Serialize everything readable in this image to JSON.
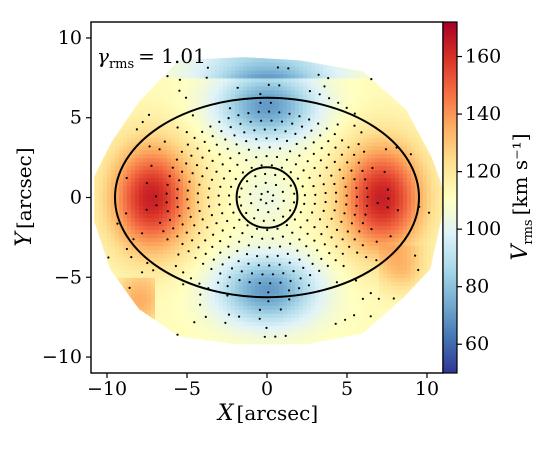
{
  "chart_data": {
    "type": "heatmap",
    "annotation": {
      "symbol": "γ",
      "subscript": "rms",
      "equals_value": "= 1.01"
    },
    "xlabel": {
      "symbol": "X",
      "unit": "[arcsec]"
    },
    "ylabel": {
      "symbol": "Y",
      "unit": "[arcsec]"
    },
    "xlim": [
      -11,
      11
    ],
    "ylim": [
      -11,
      11
    ],
    "xticks": [
      -10,
      -5,
      0,
      5,
      10
    ],
    "yticks": [
      -10,
      -5,
      0,
      5,
      10
    ],
    "colorbar": {
      "label": {
        "symbol": "V",
        "subscript": "rms",
        "unit": "[km s⁻¹]"
      },
      "range": [
        50,
        172
      ],
      "ticks": [
        60,
        80,
        100,
        120,
        140,
        160
      ],
      "colormap": [
        "#313695",
        "#4575b4",
        "#74add1",
        "#abd9e9",
        "#e0f3f8",
        "#ffffbf",
        "#fee090",
        "#fdae61",
        "#f46d43",
        "#d73027",
        "#a50026"
      ]
    },
    "field_shape": {
      "description_value_model": "velocity field with red lobes on the major axis and blue lobes on the minor axis",
      "outline_vertices": [
        [
          -5.5,
          8.6
        ],
        [
          -1.5,
          8.8
        ],
        [
          2,
          8.6
        ],
        [
          6,
          7.9
        ],
        [
          8.7,
          5.5
        ],
        [
          10.3,
          2.5
        ],
        [
          11.2,
          0
        ],
        [
          10.2,
          -4.5
        ],
        [
          8.5,
          -6.3
        ],
        [
          6,
          -8.5
        ],
        [
          2.5,
          -9.2
        ],
        [
          -2,
          -9.2
        ],
        [
          -5.5,
          -8.7
        ],
        [
          -8,
          -7
        ],
        [
          -9.8,
          -4.5
        ],
        [
          -10.8,
          -1.5
        ],
        [
          -10.8,
          1.3
        ],
        [
          -9.7,
          3.5
        ],
        [
          -8,
          6
        ]
      ]
    },
    "ellipses": [
      {
        "center": [
          0,
          0
        ],
        "semi_x": 9.5,
        "semi_y": 6.25
      },
      {
        "center": [
          0,
          0
        ],
        "semi_x": 1.9,
        "semi_y": 1.9
      }
    ]
  }
}
